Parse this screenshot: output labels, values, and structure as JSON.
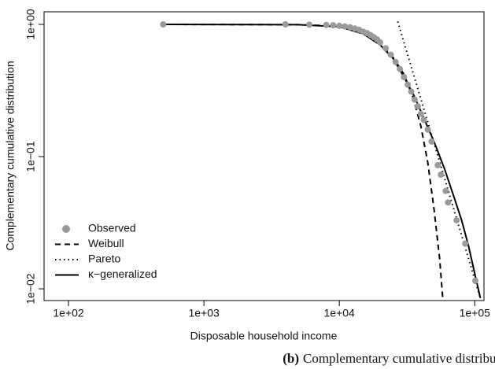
{
  "chart_data": {
    "type": "line",
    "xlabel": "Disposable household income",
    "ylabel": "Complementary cumulative distribution",
    "caption_label": "(b)",
    "caption": "Complementary cumulative distribution",
    "xscale": "log",
    "yscale": "log",
    "xlim": [
      66,
      117000
    ],
    "ylim": [
      0.00815,
      1.245
    ],
    "xticks": [
      {
        "value": 100,
        "label": "1e+02"
      },
      {
        "value": 1000,
        "label": "1e+03"
      },
      {
        "value": 10000,
        "label": "1e+04"
      },
      {
        "value": 100000,
        "label": "1e+05"
      }
    ],
    "yticks": [
      {
        "value": 1,
        "label": "1e+00"
      },
      {
        "value": 0.1,
        "label": "1e−01"
      },
      {
        "value": 0.01,
        "label": "1e−02"
      }
    ],
    "legend": "bottom-left",
    "series": [
      {
        "name": "Observed",
        "style": "points",
        "color": "#9a9a9a",
        "x": [
          500,
          4000,
          6000,
          8000,
          9000,
          10000,
          11000,
          12000,
          13000,
          14000,
          15000,
          16000,
          17000,
          18000,
          19000,
          20000,
          22000,
          24000,
          26000,
          28000,
          30000,
          32000,
          34000,
          36000,
          38000,
          40000,
          42000,
          45000,
          48000,
          53300,
          56200,
          61000,
          63500,
          73400,
          85100,
          101000
        ],
        "values": [
          1,
          1,
          0.995,
          0.99,
          0.985,
          0.975,
          0.965,
          0.95,
          0.93,
          0.91,
          0.88,
          0.86,
          0.83,
          0.8,
          0.77,
          0.73,
          0.66,
          0.59,
          0.52,
          0.46,
          0.4,
          0.35,
          0.31,
          0.27,
          0.24,
          0.21,
          0.19,
          0.16,
          0.13,
          0.086,
          0.073,
          0.055,
          0.045,
          0.033,
          0.022,
          0.0115
        ]
      },
      {
        "name": "Weibull",
        "style": "dashed",
        "color": "#000000",
        "x": [
          500,
          5000,
          10000,
          15000,
          20000,
          25000,
          30000,
          35000,
          40000,
          45000,
          50000,
          55000,
          58000
        ],
        "values": [
          1,
          0.995,
          0.97,
          0.86,
          0.72,
          0.56,
          0.42,
          0.28,
          0.17,
          0.09,
          0.04,
          0.017,
          0.0085
        ]
      },
      {
        "name": "Pareto",
        "style": "dotted",
        "color": "#000000",
        "x": [
          27000,
          110000
        ],
        "values": [
          1.05,
          0.0085
        ]
      },
      {
        "name": "κ−generalized",
        "style": "solid",
        "color": "#000000",
        "x": [
          500,
          5000,
          10000,
          15000,
          20000,
          25000,
          30000,
          35000,
          40000,
          50000,
          60000,
          70000,
          80000,
          90000,
          100000,
          110000
        ],
        "values": [
          1,
          0.995,
          0.96,
          0.85,
          0.7,
          0.55,
          0.4,
          0.3,
          0.22,
          0.13,
          0.08,
          0.05,
          0.033,
          0.021,
          0.013,
          0.0085
        ]
      }
    ]
  }
}
